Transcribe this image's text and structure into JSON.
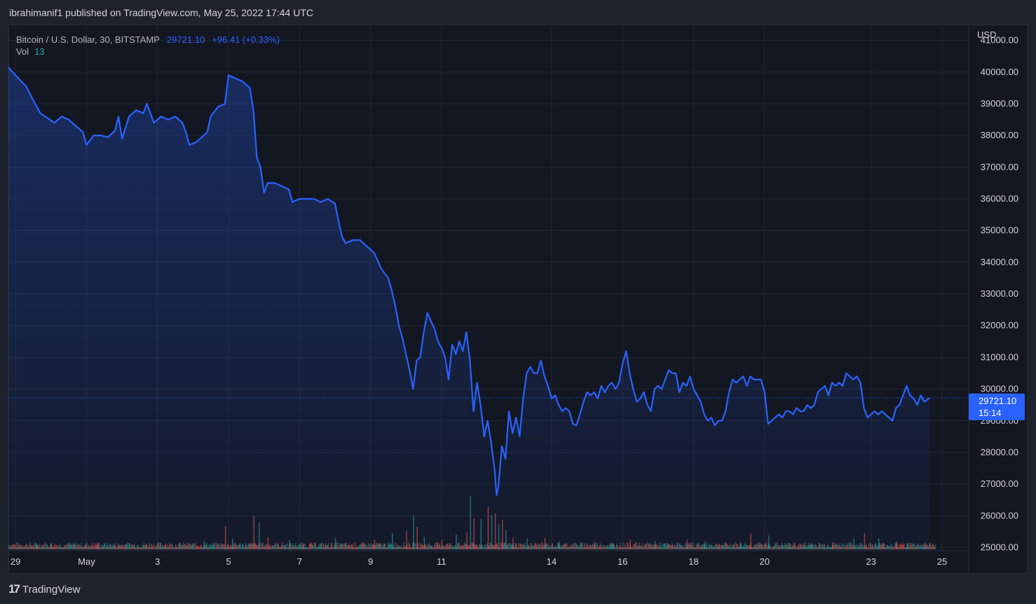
{
  "header": {
    "text": "ibrahimanif1 published on TradingView.com, May 25, 2022 17:44 UTC"
  },
  "legend": {
    "symbol": "Bitcoin / U.S. Dollar, 30, BITSTAMP",
    "price": "29721.10",
    "change": "+96.41 (+0.33%)",
    "vol_label": "Vol",
    "vol_value": "13"
  },
  "axis": {
    "currency": "USD"
  },
  "price_tag": {
    "price": "29721.10",
    "countdown": "15:14"
  },
  "branding": {
    "logo_text": "TradingView",
    "logo_mark": "17"
  },
  "colors": {
    "line": "#2962ff",
    "up_volume": "#26a69a",
    "down_volume": "#ef5350",
    "background": "#131722",
    "grid": "#2a2e39"
  },
  "chart_data": {
    "type": "area",
    "title": "Bitcoin / U.S. Dollar, 30, BITSTAMP",
    "xlabel": "",
    "ylabel": "USD",
    "ylim": [
      24900,
      41500
    ],
    "xlim": [
      0,
      27.05
    ],
    "y_ticks": [
      25000,
      26000,
      27000,
      28000,
      29000,
      30000,
      31000,
      32000,
      33000,
      34000,
      35000,
      36000,
      37000,
      38000,
      39000,
      40000,
      41000
    ],
    "y_tick_labels": [
      "25000.00",
      "26000.00",
      "27000.00",
      "28000.00",
      "29000.00",
      "30000.00",
      "31000.00",
      "32000.00",
      "33000.00",
      "34000.00",
      "35000.00",
      "36000.00",
      "37000.00",
      "38000.00",
      "39000.00",
      "40000.00",
      "41000.00"
    ],
    "x_ticks": [
      {
        "x": 0.2,
        "label": "29"
      },
      {
        "x": 2.2,
        "label": "May"
      },
      {
        "x": 4.2,
        "label": "3"
      },
      {
        "x": 6.2,
        "label": "5"
      },
      {
        "x": 8.2,
        "label": "7"
      },
      {
        "x": 10.2,
        "label": "9"
      },
      {
        "x": 12.2,
        "label": "11"
      },
      {
        "x": 15.3,
        "label": "14"
      },
      {
        "x": 17.3,
        "label": "16"
      },
      {
        "x": 19.3,
        "label": "18"
      },
      {
        "x": 21.3,
        "label": "20"
      },
      {
        "x": 24.3,
        "label": "23"
      },
      {
        "x": 26.3,
        "label": "25"
      }
    ],
    "grid": true,
    "last_price": 29721.1,
    "series": [
      {
        "name": "Bitcoin / U.S. Dollar",
        "points": [
          [
            0.0,
            40150
          ],
          [
            0.2,
            39900
          ],
          [
            0.5,
            39550
          ],
          [
            0.7,
            39100
          ],
          [
            0.9,
            38700
          ],
          [
            1.1,
            38550
          ],
          [
            1.3,
            38400
          ],
          [
            1.5,
            38600
          ],
          [
            1.7,
            38500
          ],
          [
            1.9,
            38300
          ],
          [
            2.1,
            38100
          ],
          [
            2.2,
            37700
          ],
          [
            2.4,
            38000
          ],
          [
            2.6,
            38000
          ],
          [
            2.8,
            37950
          ],
          [
            3.0,
            38150
          ],
          [
            3.1,
            38600
          ],
          [
            3.2,
            37900
          ],
          [
            3.4,
            38600
          ],
          [
            3.6,
            38800
          ],
          [
            3.8,
            38700
          ],
          [
            3.9,
            39000
          ],
          [
            4.1,
            38400
          ],
          [
            4.3,
            38600
          ],
          [
            4.5,
            38500
          ],
          [
            4.7,
            38600
          ],
          [
            4.9,
            38400
          ],
          [
            5.0,
            38100
          ],
          [
            5.1,
            37700
          ],
          [
            5.3,
            37800
          ],
          [
            5.5,
            38000
          ],
          [
            5.6,
            38100
          ],
          [
            5.7,
            38600
          ],
          [
            5.9,
            38900
          ],
          [
            6.1,
            39000
          ],
          [
            6.2,
            39900
          ],
          [
            6.4,
            39800
          ],
          [
            6.6,
            39700
          ],
          [
            6.8,
            39500
          ],
          [
            6.9,
            38800
          ],
          [
            7.0,
            37300
          ],
          [
            7.1,
            37000
          ],
          [
            7.2,
            36200
          ],
          [
            7.3,
            36500
          ],
          [
            7.5,
            36500
          ],
          [
            7.7,
            36400
          ],
          [
            7.9,
            36300
          ],
          [
            8.0,
            35900
          ],
          [
            8.2,
            36000
          ],
          [
            8.4,
            36000
          ],
          [
            8.6,
            36000
          ],
          [
            8.8,
            35900
          ],
          [
            9.0,
            36000
          ],
          [
            9.2,
            35850
          ],
          [
            9.3,
            35300
          ],
          [
            9.4,
            34800
          ],
          [
            9.5,
            34600
          ],
          [
            9.7,
            34700
          ],
          [
            9.9,
            34700
          ],
          [
            10.1,
            34500
          ],
          [
            10.3,
            34300
          ],
          [
            10.5,
            33800
          ],
          [
            10.7,
            33500
          ],
          [
            10.8,
            33100
          ],
          [
            10.9,
            32600
          ],
          [
            11.0,
            32000
          ],
          [
            11.1,
            31600
          ],
          [
            11.2,
            31100
          ],
          [
            11.3,
            30600
          ],
          [
            11.4,
            30000
          ],
          [
            11.5,
            30900
          ],
          [
            11.6,
            31000
          ],
          [
            11.7,
            31800
          ],
          [
            11.8,
            32400
          ],
          [
            12.0,
            31900
          ],
          [
            12.1,
            31500
          ],
          [
            12.2,
            31300
          ],
          [
            12.3,
            31000
          ],
          [
            12.4,
            30300
          ],
          [
            12.5,
            31400
          ],
          [
            12.6,
            31100
          ],
          [
            12.7,
            31500
          ],
          [
            12.8,
            31200
          ],
          [
            12.9,
            31800
          ],
          [
            13.0,
            30900
          ],
          [
            13.1,
            29300
          ],
          [
            13.2,
            30200
          ],
          [
            13.3,
            29500
          ],
          [
            13.4,
            28500
          ],
          [
            13.5,
            29000
          ],
          [
            13.6,
            28300
          ],
          [
            13.7,
            27400
          ],
          [
            13.75,
            26650
          ],
          [
            13.8,
            26900
          ],
          [
            13.9,
            28200
          ],
          [
            14.0,
            27800
          ],
          [
            14.1,
            29300
          ],
          [
            14.2,
            28600
          ],
          [
            14.3,
            29100
          ],
          [
            14.4,
            28500
          ],
          [
            14.5,
            29700
          ],
          [
            14.6,
            30500
          ],
          [
            14.7,
            30700
          ],
          [
            14.8,
            30500
          ],
          [
            14.9,
            30500
          ],
          [
            15.0,
            30900
          ],
          [
            15.1,
            30400
          ],
          [
            15.2,
            30100
          ],
          [
            15.3,
            29700
          ],
          [
            15.4,
            29800
          ],
          [
            15.5,
            29500
          ],
          [
            15.6,
            29300
          ],
          [
            15.7,
            29400
          ],
          [
            15.8,
            29300
          ],
          [
            15.9,
            28900
          ],
          [
            16.0,
            28850
          ],
          [
            16.1,
            29200
          ],
          [
            16.2,
            29600
          ],
          [
            16.3,
            29900
          ],
          [
            16.4,
            29800
          ],
          [
            16.5,
            29900
          ],
          [
            16.6,
            29700
          ],
          [
            16.7,
            30100
          ],
          [
            16.8,
            29900
          ],
          [
            16.9,
            30100
          ],
          [
            17.0,
            30200
          ],
          [
            17.1,
            30000
          ],
          [
            17.2,
            30200
          ],
          [
            17.3,
            30800
          ],
          [
            17.4,
            31200
          ],
          [
            17.5,
            30500
          ],
          [
            17.6,
            30000
          ],
          [
            17.7,
            29600
          ],
          [
            17.8,
            29700
          ],
          [
            17.9,
            29900
          ],
          [
            18.0,
            29500
          ],
          [
            18.1,
            29300
          ],
          [
            18.2,
            30000
          ],
          [
            18.3,
            30100
          ],
          [
            18.4,
            30000
          ],
          [
            18.5,
            30300
          ],
          [
            18.6,
            30600
          ],
          [
            18.7,
            30500
          ],
          [
            18.8,
            30500
          ],
          [
            18.9,
            29900
          ],
          [
            19.0,
            30200
          ],
          [
            19.1,
            30100
          ],
          [
            19.2,
            30400
          ],
          [
            19.3,
            30000
          ],
          [
            19.4,
            29800
          ],
          [
            19.5,
            29600
          ],
          [
            19.6,
            29200
          ],
          [
            19.7,
            29000
          ],
          [
            19.8,
            29100
          ],
          [
            19.9,
            28850
          ],
          [
            20.0,
            29000
          ],
          [
            20.1,
            29000
          ],
          [
            20.2,
            29300
          ],
          [
            20.3,
            29900
          ],
          [
            20.4,
            30300
          ],
          [
            20.5,
            30200
          ],
          [
            20.6,
            30300
          ],
          [
            20.7,
            30400
          ],
          [
            20.8,
            30100
          ],
          [
            20.9,
            30400
          ],
          [
            21.0,
            30300
          ],
          [
            21.1,
            30300
          ],
          [
            21.2,
            30300
          ],
          [
            21.3,
            29900
          ],
          [
            21.4,
            28900
          ],
          [
            21.5,
            29000
          ],
          [
            21.6,
            29100
          ],
          [
            21.7,
            29200
          ],
          [
            21.8,
            29100
          ],
          [
            21.9,
            29300
          ],
          [
            22.0,
            29300
          ],
          [
            22.1,
            29200
          ],
          [
            22.2,
            29400
          ],
          [
            22.3,
            29300
          ],
          [
            22.4,
            29300
          ],
          [
            22.5,
            29500
          ],
          [
            22.6,
            29400
          ],
          [
            22.7,
            29500
          ],
          [
            22.8,
            29900
          ],
          [
            22.9,
            30000
          ],
          [
            23.0,
            30100
          ],
          [
            23.1,
            29800
          ],
          [
            23.2,
            30200
          ],
          [
            23.3,
            30100
          ],
          [
            23.4,
            30200
          ],
          [
            23.5,
            30100
          ],
          [
            23.6,
            30500
          ],
          [
            23.7,
            30400
          ],
          [
            23.8,
            30300
          ],
          [
            23.9,
            30400
          ],
          [
            24.0,
            30200
          ],
          [
            24.1,
            29400
          ],
          [
            24.2,
            29100
          ],
          [
            24.3,
            29200
          ],
          [
            24.4,
            29300
          ],
          [
            24.5,
            29200
          ],
          [
            24.6,
            29300
          ],
          [
            24.7,
            29200
          ],
          [
            24.8,
            29100
          ],
          [
            24.9,
            29000
          ],
          [
            25.0,
            29400
          ],
          [
            25.1,
            29500
          ],
          [
            25.2,
            29800
          ],
          [
            25.3,
            30100
          ],
          [
            25.4,
            29800
          ],
          [
            25.5,
            29700
          ],
          [
            25.6,
            29500
          ],
          [
            25.7,
            29800
          ],
          [
            25.8,
            29600
          ],
          [
            25.95,
            29721
          ]
        ]
      },
      {
        "name": "Vol",
        "volume_scale_max": 1000,
        "values": [
          [
            0.8,
            120
          ],
          [
            1.2,
            150
          ],
          [
            2.5,
            180
          ],
          [
            3.3,
            130
          ],
          [
            4.4,
            140
          ],
          [
            5.5,
            220
          ],
          [
            6.1,
            600
          ],
          [
            6.3,
            280
          ],
          [
            6.9,
            870
          ],
          [
            7.05,
            700
          ],
          [
            7.3,
            320
          ],
          [
            7.9,
            240
          ],
          [
            8.3,
            150
          ],
          [
            9.2,
            300
          ],
          [
            10.3,
            250
          ],
          [
            10.8,
            420
          ],
          [
            11.2,
            470
          ],
          [
            11.4,
            880
          ],
          [
            11.5,
            580
          ],
          [
            11.7,
            330
          ],
          [
            12.2,
            250
          ],
          [
            12.6,
            380
          ],
          [
            12.9,
            440
          ],
          [
            13.0,
            1380
          ],
          [
            13.1,
            800
          ],
          [
            13.3,
            780
          ],
          [
            13.5,
            1100
          ],
          [
            13.6,
            880
          ],
          [
            13.7,
            930
          ],
          [
            13.8,
            640
          ],
          [
            13.9,
            760
          ],
          [
            14.0,
            500
          ],
          [
            14.2,
            300
          ],
          [
            14.6,
            270
          ],
          [
            15.1,
            300
          ],
          [
            15.5,
            200
          ],
          [
            16.5,
            190
          ],
          [
            17.0,
            170
          ],
          [
            17.5,
            240
          ],
          [
            18.2,
            210
          ],
          [
            19.1,
            250
          ],
          [
            19.6,
            210
          ],
          [
            20.0,
            130
          ],
          [
            20.6,
            180
          ],
          [
            20.9,
            410
          ],
          [
            21.4,
            360
          ],
          [
            22.0,
            150
          ],
          [
            22.6,
            170
          ],
          [
            23.2,
            180
          ],
          [
            23.8,
            290
          ],
          [
            24.1,
            420
          ],
          [
            24.5,
            280
          ],
          [
            25.0,
            200
          ],
          [
            25.3,
            160
          ],
          [
            25.8,
            140
          ]
        ]
      }
    ]
  }
}
